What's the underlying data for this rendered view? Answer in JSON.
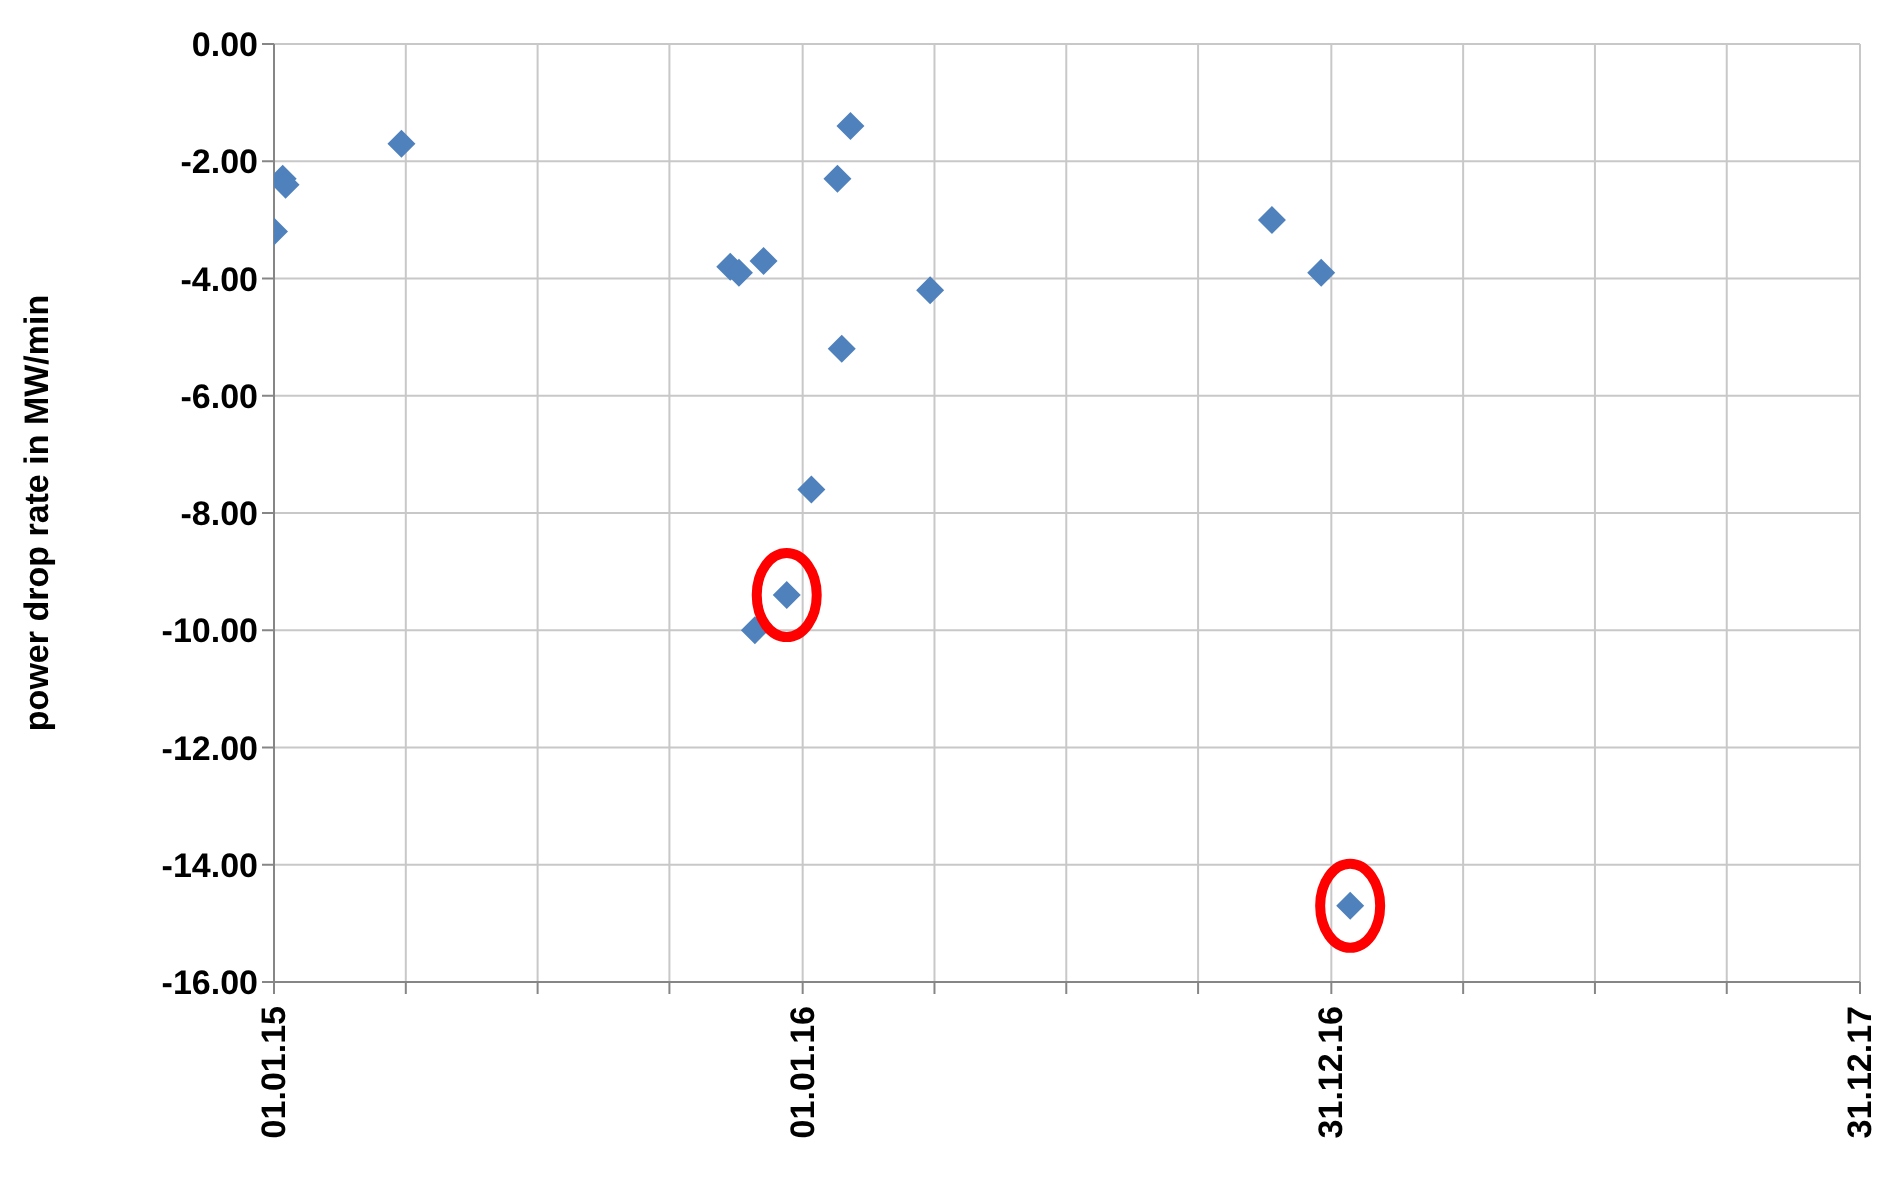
{
  "chart_data": {
    "type": "scatter",
    "ylabel": "power drop rate in MW/min",
    "grid": true,
    "legend": false,
    "xlim": [
      "2015-01-01",
      "2017-12-31"
    ],
    "xticks": [
      {
        "value": "2015-01-01",
        "label": "01.01.15"
      },
      {
        "value": "2015-04-02",
        "label": null
      },
      {
        "value": "2015-07-02",
        "label": null
      },
      {
        "value": "2015-10-01",
        "label": null
      },
      {
        "value": "2016-01-01",
        "label": "01.01.16"
      },
      {
        "value": "2016-04-01",
        "label": null
      },
      {
        "value": "2016-07-01",
        "label": null
      },
      {
        "value": "2016-09-30",
        "label": null
      },
      {
        "value": "2016-12-31",
        "label": "31.12.16"
      },
      {
        "value": "2017-04-01",
        "label": null
      },
      {
        "value": "2017-07-01",
        "label": null
      },
      {
        "value": "2017-09-30",
        "label": null
      },
      {
        "value": "2017-12-31",
        "label": "31.12.17"
      }
    ],
    "ylim": [
      -16,
      0
    ],
    "yticks": [
      {
        "value": 0,
        "label": "0.00"
      },
      {
        "value": -2,
        "label": "-2.00"
      },
      {
        "value": -4,
        "label": "-4.00"
      },
      {
        "value": -6,
        "label": "-6.00"
      },
      {
        "value": -8,
        "label": "-8.00"
      },
      {
        "value": -10,
        "label": "-10.00"
      },
      {
        "value": -12,
        "label": "-12.00"
      },
      {
        "value": -14,
        "label": "-14.00"
      },
      {
        "value": -16,
        "label": "-16.00"
      }
    ],
    "series": [
      {
        "color": "#4f81bd",
        "marker": "diamond",
        "x": [
          "2015-01-01",
          "2015-01-07",
          "2015-01-09",
          "2015-03-30",
          "2015-11-12",
          "2015-11-18",
          "2015-12-05",
          "2015-11-29",
          "2015-12-21",
          "2016-01-07",
          "2016-01-25",
          "2016-01-28",
          "2016-02-03",
          "2016-03-29",
          "2016-11-20",
          "2016-12-24",
          "2017-01-13"
        ],
        "values": [
          -3.2,
          -2.3,
          -2.4,
          -1.7,
          -3.8,
          -3.9,
          -3.7,
          -10.0,
          -9.4,
          -7.6,
          -2.3,
          -5.2,
          -1.4,
          -4.2,
          -3.0,
          -3.9,
          -14.7
        ]
      },
      {
        "type": "scatter",
        "color": "#ff0000",
        "marker": "circle",
        "x": [
          "2015-12-21",
          "2017-01-13"
        ],
        "values": [
          -9.4,
          -14.7
        ]
      }
    ]
  }
}
